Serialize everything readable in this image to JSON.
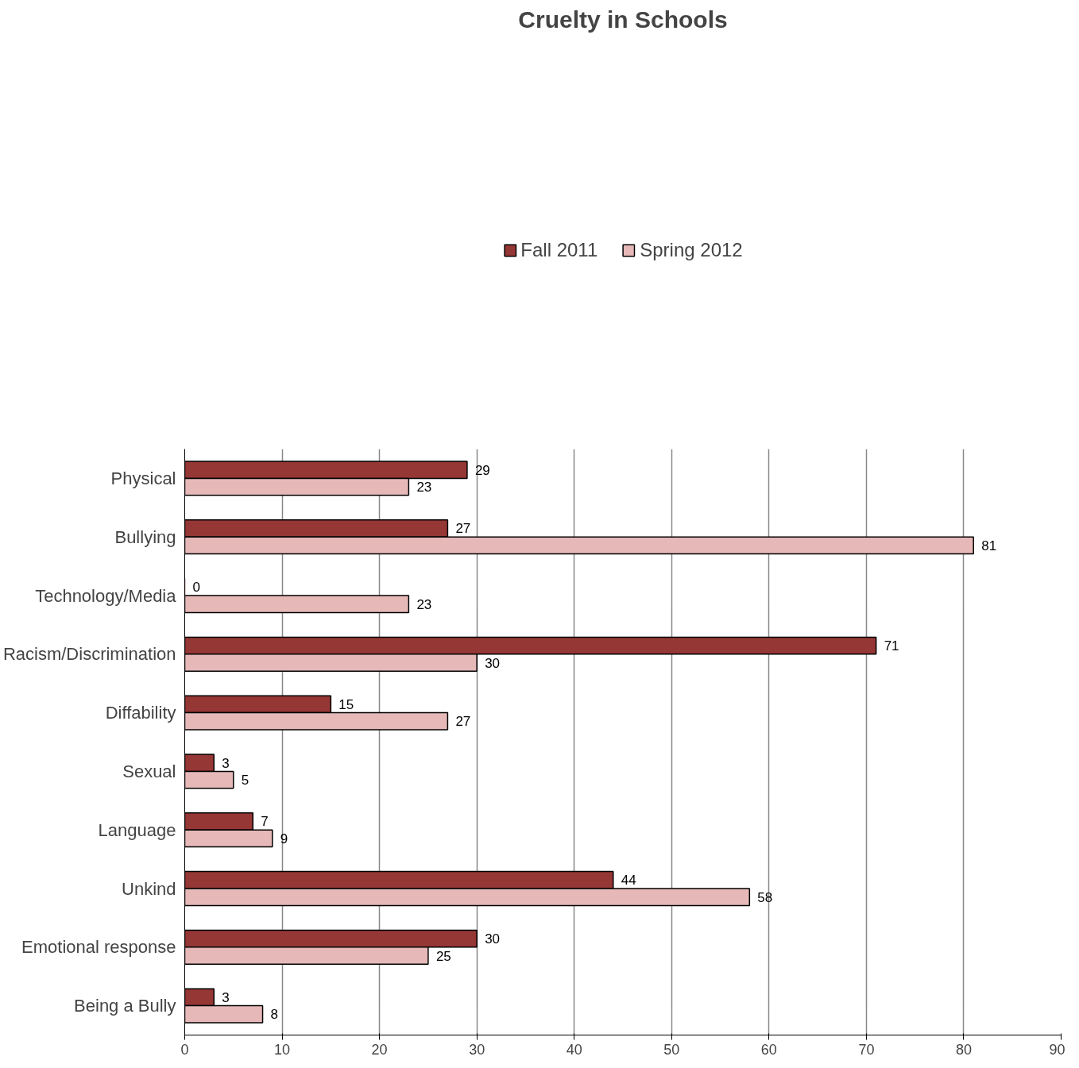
{
  "chart_data": {
    "type": "bar",
    "orientation": "horizontal",
    "title": "Cruelty in Schools",
    "categories": [
      "Physical",
      "Bullying",
      "Technology/Media",
      "Racism/Discrimination",
      "Diffability",
      "Sexual",
      "Language",
      "Unkind",
      "Emotional response",
      "Being a Bully"
    ],
    "series": [
      {
        "name": "Fall 2011",
        "color": "#953735",
        "values": [
          29,
          27,
          0,
          71,
          15,
          3,
          7,
          44,
          30,
          3
        ]
      },
      {
        "name": "Spring 2012",
        "color": "#e6b9b8",
        "values": [
          23,
          81,
          23,
          30,
          27,
          5,
          9,
          58,
          25,
          8
        ]
      }
    ],
    "xlim": [
      0,
      90
    ],
    "xticks": [
      0,
      10,
      20,
      30,
      40,
      50,
      60,
      70,
      80,
      90
    ],
    "grid": "x",
    "legend": "top",
    "data_labels": true
  }
}
